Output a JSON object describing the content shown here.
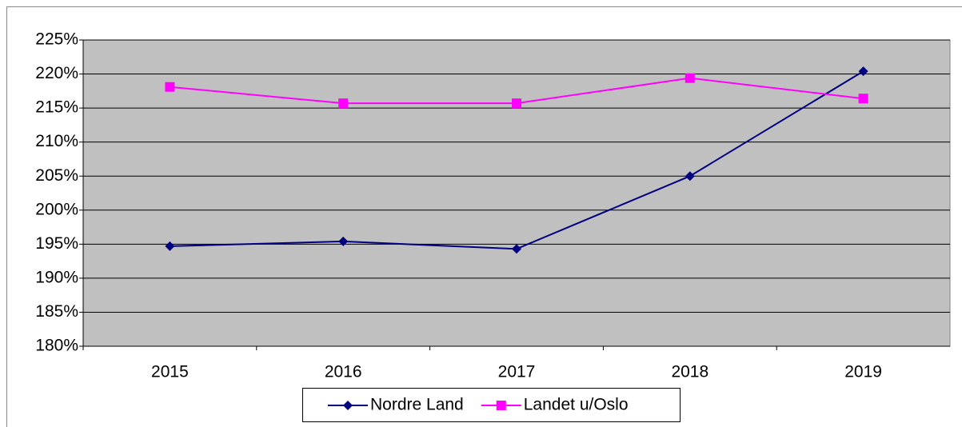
{
  "chart_data": {
    "type": "line",
    "categories": [
      "2015",
      "2016",
      "2017",
      "2018",
      "2019"
    ],
    "series": [
      {
        "name": "Nordre Land",
        "color": "#000080",
        "marker": "diamond",
        "values": [
          194.7,
          195.4,
          194.3,
          205.0,
          220.4
        ]
      },
      {
        "name": "Landet u/Oslo",
        "color": "#ff00ff",
        "marker": "square",
        "values": [
          218.1,
          215.7,
          215.7,
          219.4,
          216.4
        ]
      }
    ],
    "ylim": [
      180,
      225
    ],
    "yticks": [
      {
        "value": 180,
        "label": "180%"
      },
      {
        "value": 185,
        "label": "185%"
      },
      {
        "value": 190,
        "label": "190%"
      },
      {
        "value": 195,
        "label": "195%"
      },
      {
        "value": 200,
        "label": "200%"
      },
      {
        "value": 205,
        "label": "205%"
      },
      {
        "value": 210,
        "label": "210%"
      },
      {
        "value": 215,
        "label": "215%"
      },
      {
        "value": 220,
        "label": "220%"
      },
      {
        "value": 225,
        "label": "225%"
      }
    ],
    "grid": true,
    "legend": "bottom",
    "plot_background": "#c0c0c0"
  }
}
